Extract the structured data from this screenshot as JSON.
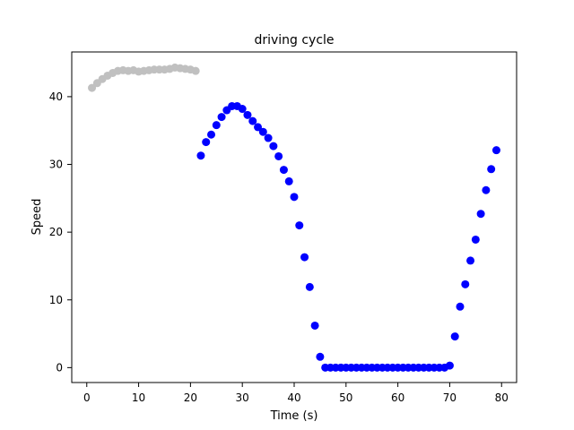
{
  "chart_data": {
    "type": "scatter",
    "title": "driving cycle",
    "xlabel": "Time (s)",
    "ylabel": "Speed",
    "xlim": [
      -2.9,
      82.9
    ],
    "ylim": [
      -2.2,
      46.6
    ],
    "xticks": [
      0,
      10,
      20,
      30,
      40,
      50,
      60,
      70,
      80
    ],
    "yticks": [
      0,
      10,
      20,
      30,
      40
    ],
    "grid": false,
    "legend": "none",
    "series": [
      {
        "color": "#c0c0c0",
        "points": [
          [
            1,
            41.3
          ],
          [
            2,
            42.0
          ],
          [
            3,
            42.6
          ],
          [
            4,
            43.1
          ],
          [
            5,
            43.5
          ],
          [
            6,
            43.8
          ],
          [
            7,
            43.9
          ],
          [
            8,
            43.8
          ],
          [
            9,
            43.9
          ],
          [
            10,
            43.7
          ],
          [
            11,
            43.8
          ],
          [
            12,
            43.9
          ],
          [
            13,
            44.0
          ],
          [
            14,
            44.0
          ],
          [
            15,
            44.0
          ],
          [
            16,
            44.1
          ],
          [
            17,
            44.3
          ],
          [
            18,
            44.2
          ],
          [
            19,
            44.1
          ],
          [
            20,
            44.0
          ],
          [
            21,
            43.8
          ]
        ]
      },
      {
        "color": "#0000ff",
        "points": [
          [
            22,
            31.3
          ],
          [
            23,
            33.3
          ],
          [
            24,
            34.4
          ],
          [
            25,
            35.8
          ],
          [
            26,
            37.0
          ],
          [
            27,
            38.0
          ],
          [
            28,
            38.6
          ],
          [
            29,
            38.6
          ],
          [
            30,
            38.2
          ],
          [
            31,
            37.3
          ],
          [
            32,
            36.4
          ],
          [
            33,
            35.5
          ],
          [
            34,
            34.8
          ],
          [
            35,
            33.9
          ],
          [
            36,
            32.7
          ],
          [
            37,
            31.2
          ],
          [
            38,
            29.2
          ],
          [
            39,
            27.5
          ],
          [
            40,
            25.2
          ],
          [
            41,
            21.0
          ],
          [
            42,
            16.3
          ],
          [
            43,
            11.9
          ],
          [
            44,
            6.2
          ],
          [
            45,
            1.6
          ],
          [
            46,
            0.0
          ],
          [
            47,
            0.0
          ],
          [
            48,
            0.0
          ],
          [
            49,
            0.0
          ],
          [
            50,
            0.0
          ],
          [
            51,
            0.0
          ],
          [
            52,
            0.0
          ],
          [
            53,
            0.0
          ],
          [
            54,
            0.0
          ],
          [
            55,
            0.0
          ],
          [
            56,
            0.0
          ],
          [
            57,
            0.0
          ],
          [
            58,
            0.0
          ],
          [
            59,
            0.0
          ],
          [
            60,
            0.0
          ],
          [
            61,
            0.0
          ],
          [
            62,
            0.0
          ],
          [
            63,
            0.0
          ],
          [
            64,
            0.0
          ],
          [
            65,
            0.0
          ],
          [
            66,
            0.0
          ],
          [
            67,
            0.0
          ],
          [
            68,
            0.0
          ],
          [
            69,
            0.0
          ],
          [
            70,
            0.3
          ],
          [
            71,
            4.6
          ],
          [
            72,
            9.0
          ],
          [
            73,
            12.3
          ],
          [
            74,
            15.8
          ],
          [
            75,
            18.9
          ],
          [
            76,
            22.7
          ],
          [
            77,
            26.2
          ],
          [
            78,
            29.3
          ],
          [
            79,
            32.1
          ]
        ]
      }
    ]
  }
}
